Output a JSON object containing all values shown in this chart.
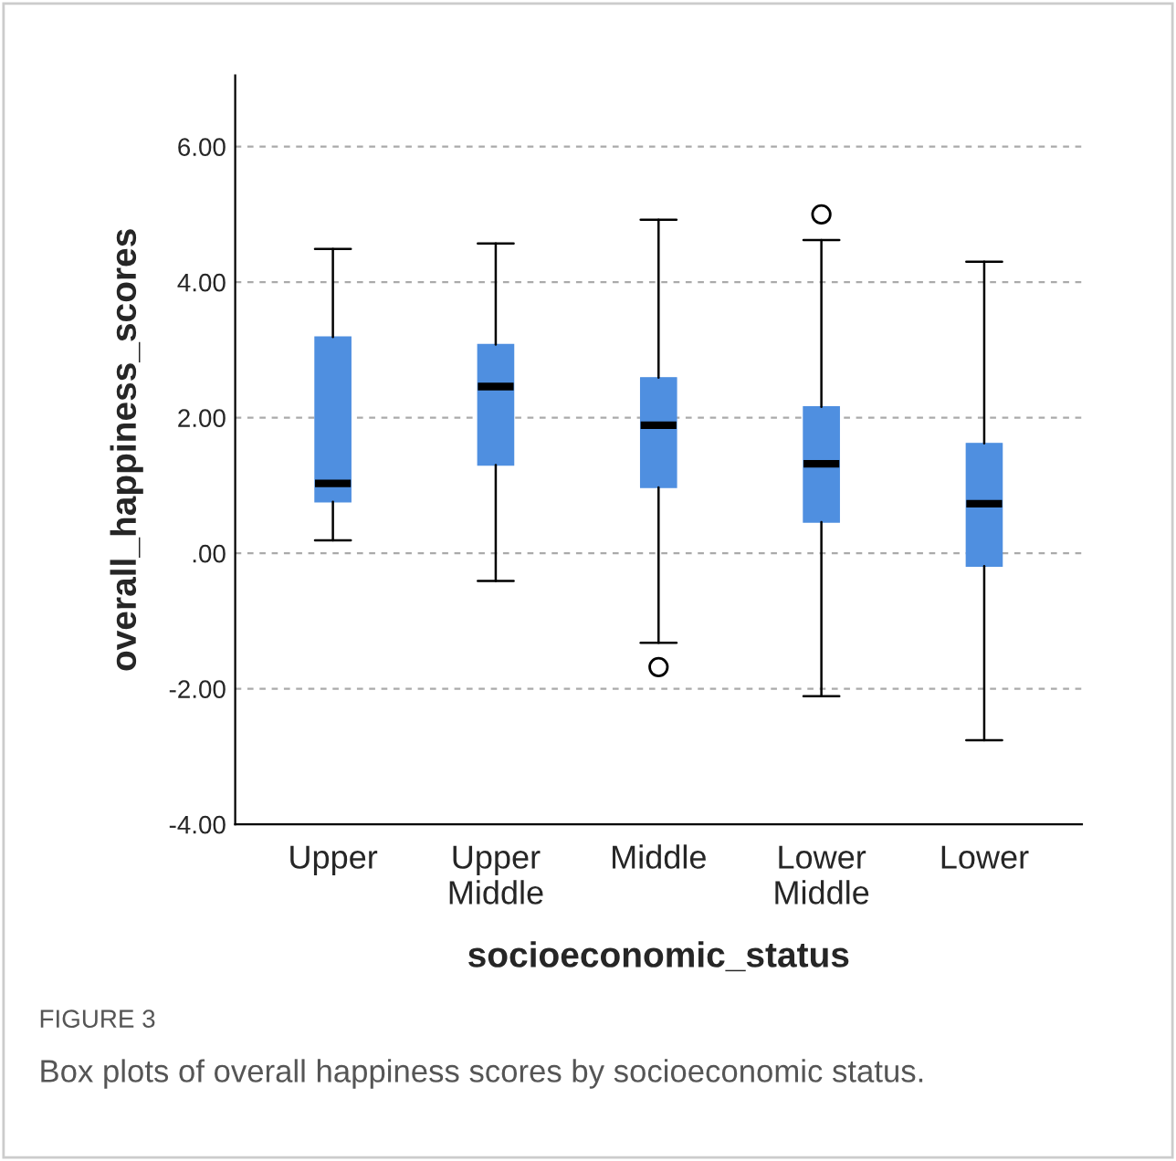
{
  "chart_data": {
    "type": "box",
    "xlabel": "socioeconomic_status",
    "ylabel": "overall_happiness_scores",
    "categories": [
      "Upper",
      "Upper Middle",
      "Middle",
      "Lower Middle",
      "Lower"
    ],
    "boxes": [
      {
        "low": 0.19,
        "q1": 0.76,
        "median": 1.03,
        "q3": 3.19,
        "high": 4.49
      },
      {
        "low": -0.41,
        "q1": 1.3,
        "median": 2.46,
        "q3": 3.08,
        "high": 4.57
      },
      {
        "low": -1.32,
        "q1": 0.97,
        "median": 1.89,
        "q3": 2.59,
        "high": 4.92,
        "outliers": [
          -1.68
        ]
      },
      {
        "low": -2.11,
        "q1": 0.46,
        "median": 1.32,
        "q3": 2.16,
        "high": 4.62,
        "outliers": [
          5.0
        ]
      },
      {
        "low": -2.76,
        "q1": -0.19,
        "median": 0.73,
        "q3": 1.62,
        "high": 4.3
      }
    ],
    "color": "#4f8fe0",
    "ylim": [
      -4,
      7.05
    ],
    "yticks": [
      {
        "value": -4,
        "label": "-4.00"
      },
      {
        "value": -2,
        "label": "-2.00"
      },
      {
        "value": 0,
        "label": ".00"
      },
      {
        "value": 2,
        "label": "2.00"
      },
      {
        "value": 4,
        "label": "4.00"
      },
      {
        "value": 6,
        "label": "6.00"
      }
    ],
    "grid": "y",
    "annotations": [
      "FIGURE 3",
      "Box plots of overall happiness scores by socioeconomic status."
    ]
  }
}
